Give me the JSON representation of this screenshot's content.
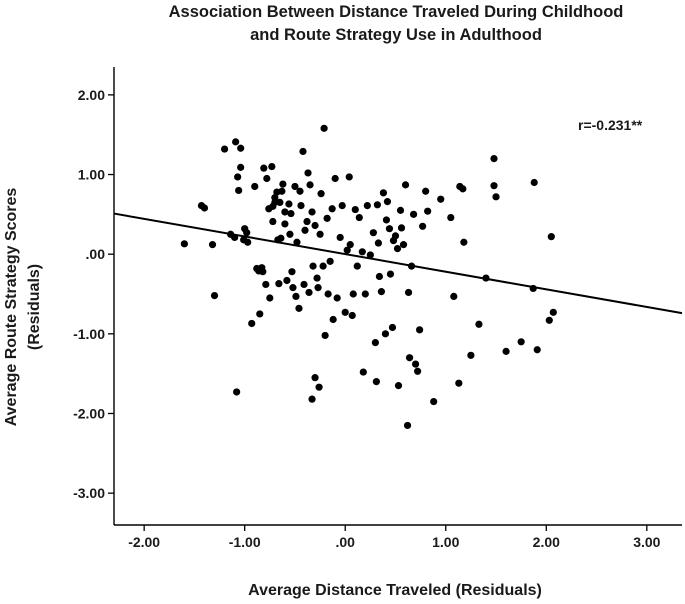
{
  "chart_data": {
    "type": "scatter",
    "title": [
      "Association Between Distance Traveled During Childhood",
      "and Route Strategy Use in Adulthood"
    ],
    "xlabel": "Average Distance Traveled (Residuals)",
    "ylabel": [
      "Average Route Strategy Scores",
      "(Residuals)"
    ],
    "xlim": [
      -2.3,
      3.35
    ],
    "ylim": [
      -3.4,
      2.35
    ],
    "xticks": [
      -2,
      -1,
      0,
      1,
      2,
      3
    ],
    "xtick_labels": [
      "-2.00",
      "-1.00",
      ".00",
      "1.00",
      "2.00",
      "3.00"
    ],
    "yticks": [
      2,
      1,
      0,
      -1,
      -2,
      -3
    ],
    "ytick_labels": [
      "2.00",
      "1.00",
      ".00",
      "-1.00",
      "-2.00",
      "-3.00"
    ],
    "annotation": "r=-0.231**",
    "grid": false,
    "fit_line": {
      "x": [
        -2.3,
        3.35
      ],
      "y": [
        0.51,
        -0.74
      ]
    },
    "points": [
      [
        -1.6,
        0.13
      ],
      [
        -1.43,
        0.61
      ],
      [
        -1.4,
        0.58
      ],
      [
        -1.32,
        0.12
      ],
      [
        -1.3,
        -0.52
      ],
      [
        -1.2,
        1.32
      ],
      [
        -1.14,
        0.25
      ],
      [
        -1.1,
        0.21
      ],
      [
        -1.09,
        1.41
      ],
      [
        -1.08,
        -1.73
      ],
      [
        -1.07,
        0.97
      ],
      [
        -1.06,
        0.8
      ],
      [
        -1.04,
        1.33
      ],
      [
        -1.04,
        1.09
      ],
      [
        -1.01,
        0.18
      ],
      [
        -1.0,
        0.32
      ],
      [
        -0.98,
        0.27
      ],
      [
        -0.97,
        0.15
      ],
      [
        -0.93,
        -0.87
      ],
      [
        -0.9,
        0.85
      ],
      [
        -0.88,
        -0.18
      ],
      [
        -0.86,
        -0.21
      ],
      [
        -0.85,
        -0.75
      ],
      [
        -0.83,
        -0.17
      ],
      [
        -0.82,
        -0.22
      ],
      [
        -0.81,
        1.08
      ],
      [
        -0.79,
        -0.38
      ],
      [
        -0.78,
        0.95
      ],
      [
        -0.76,
        0.57
      ],
      [
        -0.75,
        -0.55
      ],
      [
        -0.73,
        1.1
      ],
      [
        -0.72,
        0.41
      ],
      [
        -0.72,
        0.6
      ],
      [
        -0.7,
        0.71
      ],
      [
        -0.7,
        0.65
      ],
      [
        -0.68,
        0.78
      ],
      [
        -0.67,
        0.18
      ],
      [
        -0.66,
        -0.37
      ],
      [
        -0.65,
        0.65
      ],
      [
        -0.64,
        0.2
      ],
      [
        -0.63,
        0.79
      ],
      [
        -0.62,
        0.88
      ],
      [
        -0.6,
        0.53
      ],
      [
        -0.6,
        0.38
      ],
      [
        -0.58,
        -0.33
      ],
      [
        -0.56,
        0.63
      ],
      [
        -0.55,
        0.25
      ],
      [
        -0.54,
        0.51
      ],
      [
        -0.53,
        -0.22
      ],
      [
        -0.52,
        -0.42
      ],
      [
        -0.5,
        0.85
      ],
      [
        -0.49,
        -0.53
      ],
      [
        -0.48,
        0.15
      ],
      [
        -0.46,
        -0.68
      ],
      [
        -0.45,
        0.79
      ],
      [
        -0.44,
        0.61
      ],
      [
        -0.42,
        1.29
      ],
      [
        -0.41,
        -0.38
      ],
      [
        -0.4,
        0.3
      ],
      [
        -0.38,
        0.41
      ],
      [
        -0.37,
        1.02
      ],
      [
        -0.36,
        -0.48
      ],
      [
        -0.35,
        0.87
      ],
      [
        -0.33,
        0.53
      ],
      [
        -0.33,
        -1.82
      ],
      [
        -0.32,
        -0.15
      ],
      [
        -0.3,
        0.36
      ],
      [
        -0.3,
        -1.55
      ],
      [
        -0.28,
        -0.3
      ],
      [
        -0.27,
        -0.42
      ],
      [
        -0.26,
        -1.67
      ],
      [
        -0.25,
        0.25
      ],
      [
        -0.24,
        0.76
      ],
      [
        -0.22,
        -0.15
      ],
      [
        -0.21,
        1.58
      ],
      [
        -0.2,
        -1.02
      ],
      [
        -0.18,
        0.45
      ],
      [
        -0.17,
        -0.5
      ],
      [
        -0.15,
        -0.09
      ],
      [
        -0.13,
        0.57
      ],
      [
        -0.12,
        -0.82
      ],
      [
        -0.1,
        0.95
      ],
      [
        -0.08,
        -0.55
      ],
      [
        -0.05,
        0.21
      ],
      [
        -0.03,
        0.61
      ],
      [
        0.0,
        -0.73
      ],
      [
        0.02,
        0.05
      ],
      [
        0.04,
        0.97
      ],
      [
        0.05,
        0.12
      ],
      [
        0.07,
        -0.77
      ],
      [
        0.08,
        -0.5
      ],
      [
        0.1,
        0.56
      ],
      [
        0.12,
        -0.15
      ],
      [
        0.14,
        0.46
      ],
      [
        0.17,
        0.03
      ],
      [
        0.18,
        -1.48
      ],
      [
        0.2,
        -0.5
      ],
      [
        0.22,
        0.61
      ],
      [
        0.25,
        -0.01
      ],
      [
        0.28,
        0.27
      ],
      [
        0.3,
        -1.11
      ],
      [
        0.31,
        -1.6
      ],
      [
        0.32,
        0.62
      ],
      [
        0.33,
        0.14
      ],
      [
        0.34,
        -0.28
      ],
      [
        0.36,
        -0.47
      ],
      [
        0.38,
        0.77
      ],
      [
        0.4,
        -1.0
      ],
      [
        0.41,
        0.43
      ],
      [
        0.42,
        0.66
      ],
      [
        0.44,
        0.32
      ],
      [
        0.45,
        -0.25
      ],
      [
        0.47,
        -0.92
      ],
      [
        0.48,
        0.17
      ],
      [
        0.5,
        0.23
      ],
      [
        0.52,
        0.07
      ],
      [
        0.53,
        -1.65
      ],
      [
        0.55,
        0.55
      ],
      [
        0.56,
        0.33
      ],
      [
        0.58,
        0.12
      ],
      [
        0.6,
        0.87
      ],
      [
        0.62,
        -2.15
      ],
      [
        0.63,
        -0.48
      ],
      [
        0.64,
        -1.3
      ],
      [
        0.66,
        -0.15
      ],
      [
        0.68,
        0.5
      ],
      [
        0.7,
        -1.38
      ],
      [
        0.72,
        -1.47
      ],
      [
        0.74,
        -0.95
      ],
      [
        0.77,
        0.35
      ],
      [
        0.8,
        0.79
      ],
      [
        0.82,
        0.54
      ],
      [
        0.88,
        -1.85
      ],
      [
        0.95,
        0.69
      ],
      [
        1.05,
        0.46
      ],
      [
        1.08,
        -0.53
      ],
      [
        1.13,
        -1.62
      ],
      [
        1.14,
        0.85
      ],
      [
        1.17,
        0.82
      ],
      [
        1.18,
        0.15
      ],
      [
        1.25,
        -1.27
      ],
      [
        1.33,
        -0.88
      ],
      [
        1.4,
        -0.3
      ],
      [
        1.48,
        1.2
      ],
      [
        1.48,
        0.86
      ],
      [
        1.5,
        0.72
      ],
      [
        1.6,
        -1.22
      ],
      [
        1.75,
        -1.1
      ],
      [
        1.87,
        -0.43
      ],
      [
        1.88,
        0.9
      ],
      [
        1.91,
        -1.2
      ],
      [
        2.03,
        -0.83
      ],
      [
        2.05,
        0.22
      ],
      [
        2.07,
        -0.73
      ]
    ]
  }
}
